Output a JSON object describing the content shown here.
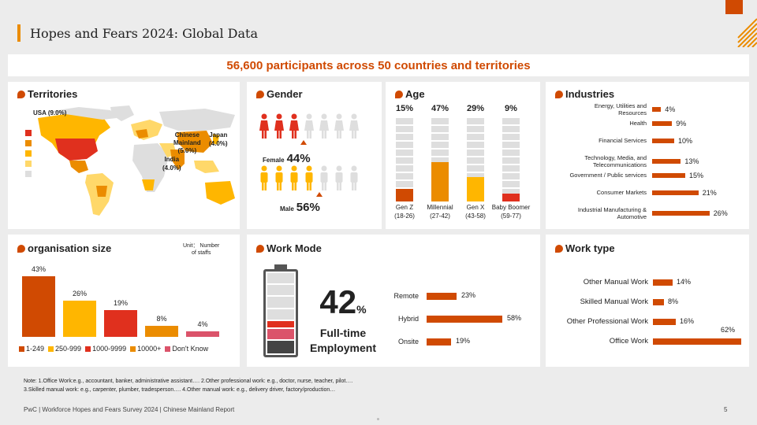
{
  "page": {
    "title": "Hopes and Fears 2024: Global Data",
    "banner": "56,600 participants across 50 countries and territories",
    "footer": "PwC | Workforce Hopes and Fears Survey 2024 | Chinese Mainland Report",
    "page_number": "5",
    "note_line1": "Note: 1.Office Work:e.g., accountant, banker, administrative assistant….    2.Other professional work: e.g., doctor, nurse, teacher, pilot….",
    "note_line2": "3.Skilled manual work: e.g., carpenter, plumber, tradesperson….    4.Other manual work: e.g., delivery driver, factory/production…",
    "colors": {
      "accent": "#d04a02",
      "yellow": "#ffb600",
      "red": "#e0301e",
      "pink": "#db536a",
      "amber": "#eb8c00",
      "grey": "#dedede"
    }
  },
  "territories": {
    "title": "Territories",
    "usa": "USA (9.0%)",
    "china_l1": "Chinese",
    "china_l2": "Mainland",
    "china_l3": "(5.0%)",
    "japan_l1": "Japan",
    "japan_l2": "(4.0%)",
    "india_l1": "India",
    "india_l2": "(4.0%)",
    "legend_colors": [
      "#e0301e",
      "#eb8c00",
      "#ffb600",
      "#ffd86a",
      "#dedede"
    ]
  },
  "gender": {
    "title": "Gender",
    "female_label": "Female",
    "female_value": "44%",
    "male_label": "Male",
    "male_value": "56%"
  },
  "age": {
    "title": "Age",
    "groups": [
      {
        "pct": "15%",
        "name": "Gen Z",
        "range": "(18-26)",
        "value": 15
      },
      {
        "pct": "47%",
        "name": "Millennial",
        "range": "(27-42)",
        "value": 47
      },
      {
        "pct": "29%",
        "name": "Gen X",
        "range": "(43-58)",
        "value": 29
      },
      {
        "pct": "9%",
        "name": "Baby Boomer",
        "range": "(59-77)",
        "value": 9
      }
    ]
  },
  "industries": {
    "title": "Industries",
    "items": [
      {
        "label1": "Energy, Utilities and",
        "label2": "Resources",
        "pct": "4%",
        "value": 4
      },
      {
        "label1": "Health",
        "label2": "",
        "pct": "9%",
        "value": 9
      },
      {
        "label1": "Financial Services",
        "label2": "",
        "pct": "10%",
        "value": 10
      },
      {
        "label1": "Technology, Media, and",
        "label2": "Telecommunications",
        "pct": "13%",
        "value": 13
      },
      {
        "label1": "Government / Public services",
        "label2": "",
        "pct": "15%",
        "value": 15
      },
      {
        "label1": "Consumer Markets",
        "label2": "",
        "pct": "21%",
        "value": 21
      },
      {
        "label1": "Industrial Manufacturing &",
        "label2": "Automotive",
        "pct": "26%",
        "value": 26
      }
    ]
  },
  "org_size": {
    "title": "organisation size",
    "unit_l1": "Unit： Number",
    "unit_l2": "of staffs",
    "bars": [
      {
        "pct": "43%",
        "value": 43,
        "color": "#d04a02",
        "legend": "1-249"
      },
      {
        "pct": "26%",
        "value": 26,
        "color": "#ffb600",
        "legend": "250-999"
      },
      {
        "pct": "19%",
        "value": 19,
        "color": "#e0301e",
        "legend": "1000-9999"
      },
      {
        "pct": "8%",
        "value": 8,
        "color": "#eb8c00",
        "legend": "10000+"
      },
      {
        "pct": "4%",
        "value": 4,
        "color": "#db536a",
        "legend": "Don't Know"
      }
    ]
  },
  "work_mode": {
    "title": "Work Mode",
    "big_number": "42",
    "big_unit": "%",
    "caption_l1": "Full-time",
    "caption_l2": "Employment",
    "items": [
      {
        "label": "Remote",
        "pct": "23%",
        "value": 23
      },
      {
        "label": "Hybrid",
        "pct": "58%",
        "value": 58
      },
      {
        "label": "Onsite",
        "pct": "19%",
        "value": 19
      }
    ]
  },
  "work_type": {
    "title": "Work type",
    "items": [
      {
        "label": "Other Manual Work",
        "pct": "14%",
        "value": 14
      },
      {
        "label": "Skilled Manual Work",
        "pct": "8%",
        "value": 8
      },
      {
        "label": "Other Professional Work",
        "pct": "16%",
        "value": 16
      },
      {
        "label": "Office Work",
        "pct": "62%",
        "value": 62
      }
    ]
  }
}
